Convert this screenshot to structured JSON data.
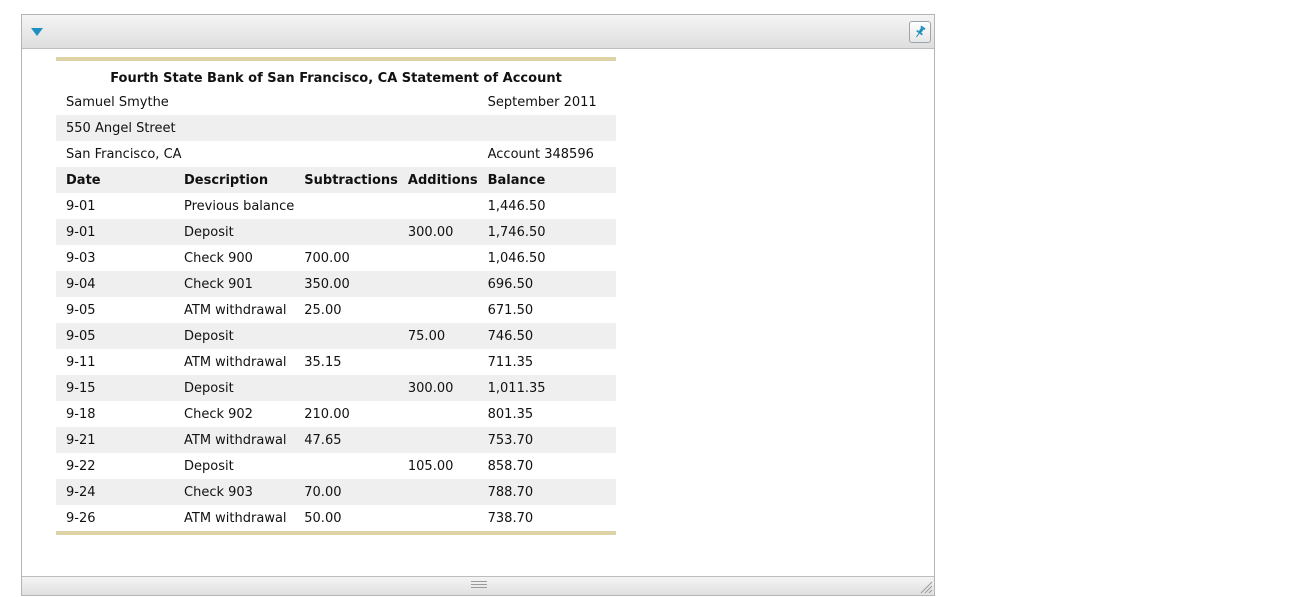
{
  "statement": {
    "title": "Fourth State Bank of San Francisco, CA Statement of Account",
    "holder_name": "Samuel Smythe",
    "period": "September 2011",
    "street": "550 Angel Street",
    "city": "San Francisco, CA",
    "account": "Account 348596",
    "headers": {
      "date": "Date",
      "description": "Description",
      "subtractions": "Subtractions",
      "additions": "Additions",
      "balance": "Balance"
    },
    "rows": [
      {
        "date": "9-01",
        "description": "Previous balance",
        "subtractions": "",
        "additions": "",
        "balance": "1,446.50"
      },
      {
        "date": "9-01",
        "description": "Deposit",
        "subtractions": "",
        "additions": "300.00",
        "balance": "1,746.50"
      },
      {
        "date": "9-03",
        "description": "Check 900",
        "subtractions": "700.00",
        "additions": "",
        "balance": "1,046.50"
      },
      {
        "date": "9-04",
        "description": "Check 901",
        "subtractions": "350.00",
        "additions": "",
        "balance": "696.50"
      },
      {
        "date": "9-05",
        "description": "ATM withdrawal",
        "subtractions": "25.00",
        "additions": "",
        "balance": "671.50"
      },
      {
        "date": "9-05",
        "description": "Deposit",
        "subtractions": "",
        "additions": "75.00",
        "balance": "746.50"
      },
      {
        "date": "9-11",
        "description": "ATM withdrawal",
        "subtractions": "35.15",
        "additions": "",
        "balance": "711.35"
      },
      {
        "date": "9-15",
        "description": "Deposit",
        "subtractions": "",
        "additions": "300.00",
        "balance": "1,011.35"
      },
      {
        "date": "9-18",
        "description": "Check 902",
        "subtractions": "210.00",
        "additions": "",
        "balance": "801.35"
      },
      {
        "date": "9-21",
        "description": "ATM withdrawal",
        "subtractions": "47.65",
        "additions": "",
        "balance": "753.70"
      },
      {
        "date": "9-22",
        "description": "Deposit",
        "subtractions": "",
        "additions": "105.00",
        "balance": "858.70"
      },
      {
        "date": "9-24",
        "description": "Check 903",
        "subtractions": "70.00",
        "additions": "",
        "balance": "788.70"
      },
      {
        "date": "9-26",
        "description": "ATM withdrawal",
        "subtractions": "50.00",
        "additions": "",
        "balance": "738.70"
      }
    ]
  },
  "panel": {
    "toggle_icon": "triangle-down-icon",
    "pin_icon": "pushpin-icon",
    "footer_icon": "drag-handle-icon",
    "resize_icon": "resize-grip-icon"
  },
  "colors": {
    "accent": "#1e8fc0",
    "table_border": "#ddd3a6",
    "row_shade": "#efefef"
  }
}
